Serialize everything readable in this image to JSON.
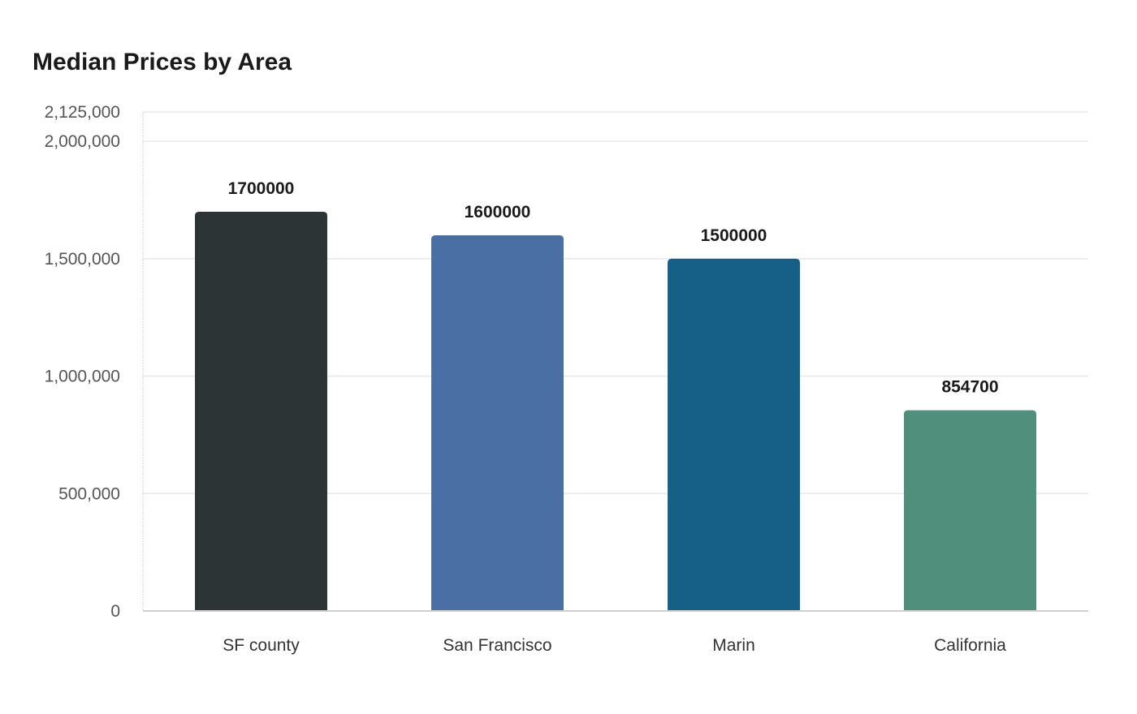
{
  "chart_data": {
    "type": "bar",
    "title": "Median Prices by Area",
    "xlabel": "",
    "ylabel": "",
    "categories": [
      "SF county",
      "San Francisco",
      "Marin",
      "California"
    ],
    "values": [
      1700000,
      1600000,
      1500000,
      854700
    ],
    "value_labels": [
      "1700000",
      "1600000",
      "1500000",
      "854700"
    ],
    "colors": [
      "#2d3436",
      "#4a6fa5",
      "#166088",
      "#4f8f7b"
    ],
    "ylim": [
      0,
      2125000
    ],
    "yticks": [
      0,
      500000,
      1000000,
      1500000,
      2000000,
      2125000
    ],
    "ytick_labels": [
      "0",
      "500,000",
      "1,000,000",
      "1,500,000",
      "2,000,000",
      "2,125,000"
    ],
    "grid": true,
    "legend": "none"
  }
}
